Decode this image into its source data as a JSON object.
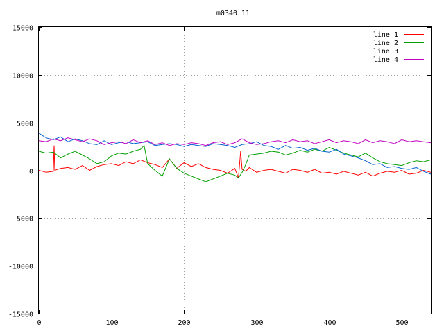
{
  "chart_data": {
    "type": "line",
    "title": "m0340_11",
    "xlabel": "",
    "ylabel": "",
    "xlim": [
      0,
      540
    ],
    "ylim": [
      -15000,
      15000
    ],
    "xticks": [
      0,
      100,
      200,
      300,
      400,
      500
    ],
    "yticks": [
      -15000,
      -10000,
      -5000,
      0,
      5000,
      10000,
      15000
    ],
    "grid": true,
    "legend_position": "top-right",
    "series": [
      {
        "name": "line 1",
        "color": "#ff0000",
        "x": [
          0,
          10,
          20,
          21,
          22,
          30,
          40,
          50,
          60,
          70,
          80,
          90,
          100,
          110,
          120,
          130,
          140,
          150,
          160,
          170,
          180,
          190,
          200,
          210,
          220,
          230,
          240,
          250,
          260,
          270,
          275,
          278,
          280,
          285,
          290,
          300,
          310,
          320,
          330,
          340,
          350,
          360,
          370,
          380,
          390,
          400,
          410,
          420,
          430,
          440,
          450,
          460,
          470,
          480,
          490,
          500,
          510,
          520,
          530,
          540
        ],
        "y": [
          0,
          -200,
          -100,
          2600,
          0,
          200,
          300,
          100,
          500,
          0,
          400,
          600,
          700,
          500,
          900,
          700,
          1100,
          800,
          600,
          300,
          1200,
          200,
          800,
          400,
          700,
          300,
          100,
          0,
          -300,
          200,
          -800,
          2000,
          100,
          -100,
          300,
          -200,
          0,
          100,
          -100,
          -300,
          100,
          0,
          -200,
          100,
          -300,
          -200,
          -400,
          -100,
          -300,
          -500,
          -200,
          -600,
          -300,
          -100,
          -200,
          0,
          -400,
          -300,
          0,
          -200
        ]
      },
      {
        "name": "line 2",
        "color": "#00a000",
        "x": [
          0,
          10,
          20,
          30,
          40,
          50,
          60,
          70,
          80,
          90,
          100,
          110,
          120,
          130,
          140,
          145,
          150,
          160,
          170,
          180,
          190,
          200,
          210,
          220,
          230,
          240,
          250,
          260,
          270,
          275,
          280,
          285,
          290,
          300,
          310,
          320,
          330,
          340,
          350,
          360,
          370,
          380,
          390,
          400,
          410,
          420,
          430,
          440,
          450,
          460,
          470,
          480,
          490,
          500,
          510,
          520,
          530,
          540
        ],
        "y": [
          2000,
          1800,
          1900,
          1300,
          1700,
          2000,
          1600,
          1200,
          700,
          900,
          1500,
          1800,
          1700,
          2000,
          2200,
          2600,
          700,
          0,
          -600,
          1200,
          200,
          -300,
          -600,
          -900,
          -1200,
          -900,
          -600,
          -300,
          -500,
          -800,
          -200,
          600,
          1600,
          1700,
          1800,
          2000,
          1900,
          1600,
          1800,
          2100,
          1900,
          2200,
          2000,
          2400,
          2100,
          1800,
          1600,
          1400,
          1800,
          1300,
          900,
          700,
          600,
          500,
          800,
          1000,
          900,
          1100
        ]
      },
      {
        "name": "line 3",
        "color": "#0060d0",
        "x": [
          0,
          10,
          20,
          30,
          40,
          50,
          60,
          70,
          80,
          90,
          100,
          110,
          120,
          130,
          140,
          150,
          160,
          170,
          180,
          190,
          200,
          210,
          220,
          230,
          240,
          250,
          260,
          270,
          280,
          290,
          300,
          310,
          320,
          330,
          340,
          350,
          360,
          370,
          380,
          390,
          400,
          410,
          420,
          430,
          440,
          450,
          460,
          470,
          480,
          490,
          500,
          510,
          520,
          530,
          540
        ],
        "y": [
          3900,
          3400,
          3200,
          3500,
          3000,
          3300,
          3100,
          2800,
          2700,
          3100,
          2700,
          2900,
          3000,
          2800,
          2900,
          3000,
          2600,
          2700,
          2800,
          2700,
          2500,
          2700,
          2600,
          2500,
          2800,
          2700,
          2600,
          2400,
          2700,
          2800,
          3000,
          2600,
          2500,
          2200,
          2600,
          2300,
          2400,
          2100,
          2300,
          2000,
          1900,
          2200,
          1700,
          1500,
          1300,
          1000,
          600,
          700,
          300,
          400,
          200,
          100,
          300,
          -100,
          -400
        ]
      },
      {
        "name": "line 4",
        "color": "#c000c0",
        "x": [
          0,
          10,
          20,
          30,
          40,
          50,
          60,
          70,
          80,
          90,
          100,
          110,
          120,
          130,
          140,
          150,
          160,
          170,
          180,
          190,
          200,
          210,
          220,
          230,
          240,
          250,
          260,
          270,
          280,
          290,
          300,
          310,
          320,
          330,
          340,
          350,
          360,
          370,
          380,
          390,
          400,
          410,
          420,
          430,
          440,
          450,
          460,
          470,
          480,
          490,
          500,
          510,
          520,
          530,
          540
        ],
        "y": [
          3100,
          3000,
          3300,
          3100,
          3400,
          3200,
          3000,
          3300,
          3100,
          2700,
          2900,
          3000,
          2800,
          3200,
          2900,
          3100,
          2700,
          2900,
          2600,
          2800,
          2700,
          2900,
          2800,
          2600,
          2900,
          3000,
          2700,
          2900,
          3300,
          2900,
          2700,
          2800,
          3000,
          3100,
          2900,
          3200,
          3000,
          3100,
          2800,
          3000,
          3200,
          2900,
          3100,
          3000,
          2800,
          3200,
          2900,
          3100,
          3000,
          2800,
          3200,
          3000,
          3100,
          3000,
          2900
        ]
      }
    ]
  }
}
